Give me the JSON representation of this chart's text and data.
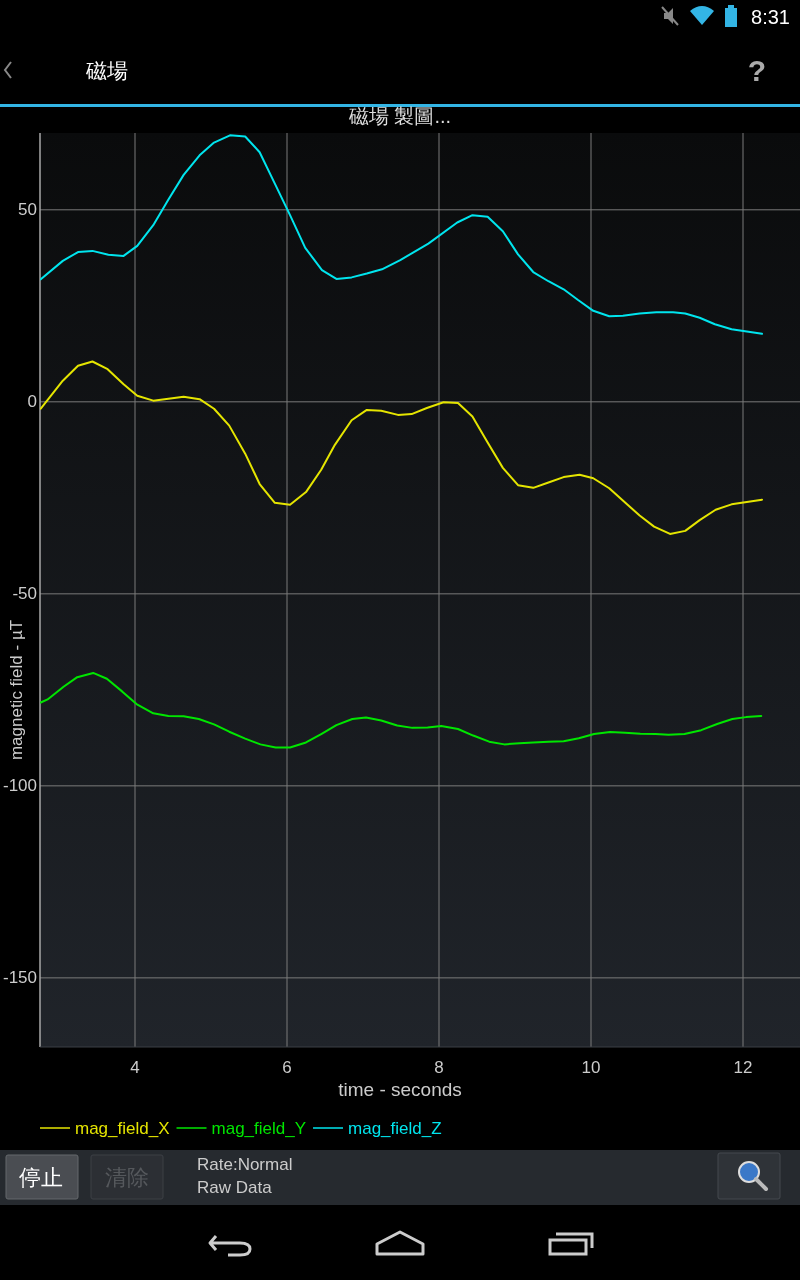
{
  "chart_data": {
    "type": "line",
    "title": "磁場 製圖...",
    "xlabel": "time - seconds",
    "ylabel": "magnetic field - µT",
    "xlim": [
      2.75,
      12.75
    ],
    "ylim": [
      -168,
      70
    ],
    "xticks": [
      4,
      6,
      8,
      10,
      12
    ],
    "yticks": [
      -150,
      -100,
      -50,
      0,
      50
    ],
    "grid": true,
    "legend": "bottom",
    "line_style": "solid",
    "annotations": [
      "磁場",
      "?",
      "停止",
      "清除",
      "Rate:Normal",
      "Raw Data",
      "8:31"
    ],
    "series": [
      {
        "name": "mag_field_X",
        "color": "#e5e500",
        "x": [
          2.76,
          3.05,
          3.25,
          3.44,
          3.64,
          3.85,
          4.03,
          4.24,
          4.44,
          4.64,
          4.85,
          5.04,
          5.24,
          5.45,
          5.64,
          5.84,
          6.04,
          6.25,
          6.45,
          6.63,
          6.85,
          7.05,
          7.24,
          7.46,
          7.64,
          7.84,
          8.06,
          8.25,
          8.44,
          8.64,
          8.84,
          9.04,
          9.24,
          9.44,
          9.64,
          9.85,
          10.03,
          10.24,
          10.43,
          10.64,
          10.83,
          11.04,
          11.24,
          11.43,
          11.64,
          11.85,
          12.05,
          12.25
        ],
        "values": [
          -1.8,
          5.5,
          9.4,
          10.5,
          8.5,
          4.6,
          1.6,
          0.3,
          0.8,
          1.3,
          0.7,
          -1.8,
          -6.2,
          -13.5,
          -21.4,
          -26.3,
          -26.8,
          -23.5,
          -17.7,
          -11.2,
          -4.8,
          -2.1,
          -2.3,
          -3.4,
          -3.2,
          -1.6,
          -0.1,
          -0.3,
          -3.8,
          -10.6,
          -17.2,
          -21.7,
          -22.4,
          -21.0,
          -19.6,
          -19.0,
          -19.9,
          -22.5,
          -25.9,
          -29.6,
          -32.5,
          -34.4,
          -33.6,
          -30.8,
          -28.1,
          -26.7,
          -26.1,
          -25.5
        ]
      },
      {
        "name": "mag_field_Y",
        "color": "#00e600",
        "x": [
          2.76,
          2.85,
          3.06,
          3.24,
          3.45,
          3.63,
          3.83,
          4.02,
          4.24,
          4.44,
          4.64,
          4.84,
          5.04,
          5.24,
          5.45,
          5.65,
          5.85,
          6.04,
          6.25,
          6.45,
          6.65,
          6.86,
          7.04,
          7.24,
          7.45,
          7.65,
          7.85,
          8.03,
          8.25,
          8.45,
          8.66,
          8.86,
          9.06,
          9.24,
          9.44,
          9.64,
          9.84,
          10.04,
          10.25,
          10.45,
          10.65,
          10.85,
          11.02,
          11.23,
          11.45,
          11.66,
          11.86,
          12.04,
          12.24
        ],
        "values": [
          -78.3,
          -77.5,
          -74.2,
          -71.7,
          -70.6,
          -72.1,
          -75.4,
          -78.7,
          -81.1,
          -81.8,
          -81.9,
          -82.6,
          -84.0,
          -85.9,
          -87.7,
          -89.2,
          -90.0,
          -90.0,
          -88.7,
          -86.5,
          -84.2,
          -82.6,
          -82.2,
          -83.0,
          -84.3,
          -84.9,
          -84.8,
          -84.4,
          -85.2,
          -86.9,
          -88.5,
          -89.2,
          -88.9,
          -88.7,
          -88.5,
          -88.4,
          -87.6,
          -86.5,
          -86.0,
          -86.2,
          -86.4,
          -86.5,
          -86.7,
          -86.5,
          -85.5,
          -83.9,
          -82.6,
          -82.1,
          -81.8
        ]
      },
      {
        "name": "mag_field_Z",
        "color": "#00e5ee",
        "x": [
          2.76,
          3.05,
          3.25,
          3.44,
          3.65,
          3.85,
          4.03,
          4.24,
          4.44,
          4.64,
          4.85,
          5.04,
          5.25,
          5.45,
          5.64,
          5.84,
          6.04,
          6.24,
          6.46,
          6.65,
          6.85,
          7.05,
          7.25,
          7.49,
          7.86,
          8.24,
          8.44,
          8.64,
          8.84,
          9.04,
          9.24,
          9.44,
          9.64,
          9.83,
          10.03,
          10.24,
          10.42,
          10.64,
          10.86,
          11.08,
          11.24,
          11.43,
          11.63,
          11.85,
          12.05,
          12.25
        ],
        "values": [
          31.9,
          36.7,
          39.0,
          39.3,
          38.3,
          38.0,
          40.6,
          46.0,
          52.7,
          59.1,
          64.2,
          67.5,
          69.4,
          69.1,
          65.0,
          56.8,
          48.6,
          40.1,
          34.3,
          32.0,
          32.4,
          33.4,
          34.5,
          36.9,
          41.2,
          46.7,
          48.6,
          48.2,
          44.4,
          38.4,
          33.8,
          31.4,
          29.3,
          26.5,
          23.7,
          22.3,
          22.4,
          23.0,
          23.3,
          23.3,
          23.0,
          21.9,
          20.2,
          18.9,
          18.3,
          17.7
        ]
      }
    ]
  }
}
